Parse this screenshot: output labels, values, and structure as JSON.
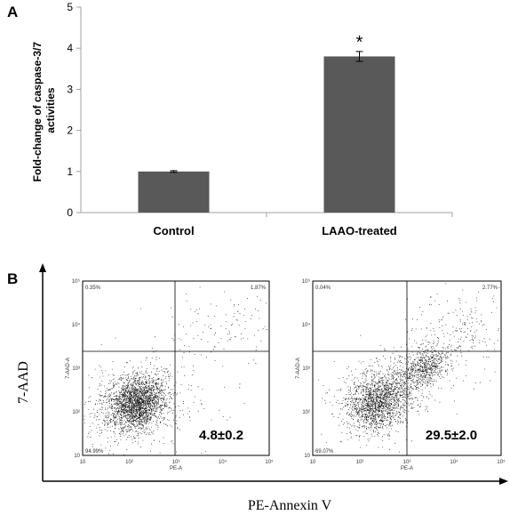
{
  "panels": {
    "a_letter": "A",
    "b_letter": "B"
  },
  "chart_data": [
    {
      "type": "bar",
      "categories": [
        "Control",
        "LAAO-treated"
      ],
      "values": [
        1.0,
        3.8
      ],
      "errors": [
        0.02,
        0.12
      ],
      "ylabel_line1": "Fold-change of caspase-3/7",
      "ylabel_line2": "activities",
      "ylim": [
        0,
        5
      ],
      "yticks": [
        "0",
        "1",
        "2",
        "3",
        "4",
        "5"
      ],
      "significance": [
        "",
        "*"
      ],
      "bar_color": "#595959",
      "grid": false
    },
    {
      "type": "scatter",
      "xlabel": "PE-Annexin V",
      "ylabel": "7-AAD",
      "plots": [
        {
          "x_axis_title": "PE-A",
          "y_axis_title": "7-AAD-A",
          "quadrant_upper_left": "0.35%",
          "quadrant_upper_right": "1.87%",
          "quadrant_lower_left": "94.99%",
          "apoptosis_value": "4.8±0.2"
        },
        {
          "x_axis_title": "PE-A",
          "y_axis_title": "7-AAD-A",
          "quadrant_upper_left": "0.04%",
          "quadrant_upper_right": "2.77%",
          "quadrant_lower_left": "69.07%",
          "apoptosis_value": "29.5±2.0"
        }
      ],
      "log_ticks": [
        "10",
        "10²",
        "10³",
        "10⁴",
        "10⁵"
      ]
    }
  ]
}
